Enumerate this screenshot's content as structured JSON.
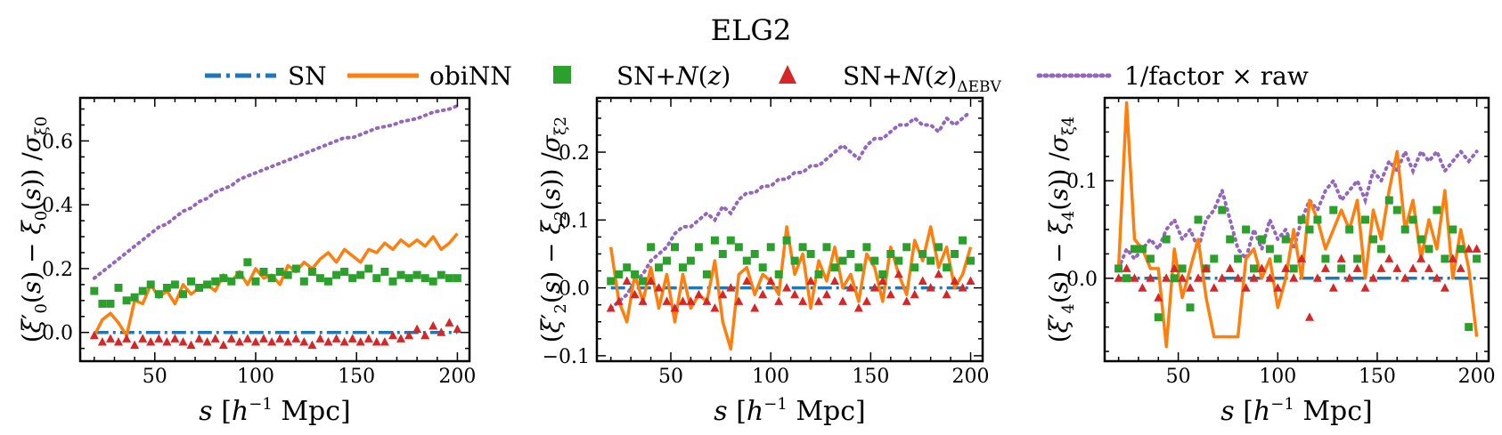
{
  "figure_title": "ELG2",
  "legend": [
    {
      "key": "sn",
      "label": "SN",
      "color": "#1f77b4",
      "style": "dashdot"
    },
    {
      "key": "obinn",
      "label": "obiNN",
      "color": "#ff7f0e",
      "style": "solid"
    },
    {
      "key": "snnz",
      "label": "SN+N(z)",
      "color": "#2ca02c",
      "style": "square"
    },
    {
      "key": "snnzebv",
      "label": "SN+N(z)ΔEBV",
      "color": "#d62728",
      "style": "triangle"
    },
    {
      "key": "raw",
      "label": "1/factor × raw",
      "color": "#9467bd",
      "style": "dotted"
    }
  ],
  "chart_data": [
    {
      "type": "line",
      "id": "xi0",
      "title": "",
      "xlabel": "s [h⁻¹ Mpc]",
      "ylabel": "(ξ′0(s) − ξ0(s)) /σξ0",
      "xlim": [
        13,
        206
      ],
      "ylim": [
        -0.09,
        0.735
      ],
      "xticks": [
        50,
        100,
        150,
        200
      ],
      "yticks": [
        0.0,
        0.2,
        0.4,
        0.6
      ],
      "ytick_labels": [
        "0.0",
        "0.2",
        "0.4",
        "0.6"
      ],
      "x": [
        20,
        24,
        28,
        32,
        36,
        40,
        44,
        48,
        52,
        56,
        60,
        64,
        68,
        72,
        76,
        80,
        84,
        88,
        92,
        96,
        100,
        104,
        108,
        112,
        116,
        120,
        124,
        128,
        132,
        136,
        140,
        144,
        148,
        152,
        156,
        160,
        164,
        168,
        172,
        176,
        180,
        184,
        188,
        192,
        196,
        200
      ],
      "series": [
        {
          "name": "SN",
          "values": [
            0,
            0,
            0,
            0,
            0,
            0,
            0,
            0,
            0,
            0,
            0,
            0,
            0,
            0,
            0,
            0,
            0,
            0,
            0,
            0,
            0,
            0,
            0,
            0,
            0,
            0,
            0,
            0,
            0,
            0,
            0,
            0,
            0,
            0,
            0,
            0,
            0,
            0,
            0,
            0,
            0,
            0,
            0,
            0,
            0,
            0
          ]
        },
        {
          "name": "obiNN",
          "values": [
            -0.01,
            0.04,
            0.06,
            0.03,
            -0.01,
            0.1,
            0.09,
            0.15,
            0.11,
            0.13,
            0.09,
            0.15,
            0.12,
            0.14,
            0.15,
            0.13,
            0.18,
            0.16,
            0.19,
            0.15,
            0.2,
            0.17,
            0.18,
            0.15,
            0.21,
            0.19,
            0.22,
            0.2,
            0.23,
            0.25,
            0.22,
            0.26,
            0.24,
            0.22,
            0.26,
            0.25,
            0.28,
            0.26,
            0.29,
            0.27,
            0.29,
            0.27,
            0.3,
            0.26,
            0.28,
            0.31
          ]
        },
        {
          "name": "SN+N(z)",
          "values": [
            0.13,
            0.09,
            0.09,
            0.14,
            0.1,
            0.11,
            0.13,
            0.15,
            0.12,
            0.14,
            0.15,
            0.12,
            0.16,
            0.14,
            0.15,
            0.16,
            0.17,
            0.16,
            0.18,
            0.22,
            0.16,
            0.19,
            0.17,
            0.19,
            0.18,
            0.2,
            0.16,
            0.19,
            0.17,
            0.16,
            0.18,
            0.19,
            0.17,
            0.18,
            0.2,
            0.17,
            0.19,
            0.16,
            0.18,
            0.17,
            0.18,
            0.17,
            0.16,
            0.18,
            0.17,
            0.17
          ]
        },
        {
          "name": "SN+N(z)ΔEBV",
          "values": [
            -0.01,
            -0.03,
            -0.02,
            -0.03,
            -0.02,
            -0.04,
            -0.02,
            -0.03,
            -0.02,
            -0.03,
            -0.02,
            -0.03,
            -0.04,
            -0.02,
            -0.03,
            -0.02,
            -0.04,
            -0.02,
            -0.03,
            -0.02,
            -0.03,
            -0.02,
            -0.03,
            -0.02,
            -0.03,
            -0.02,
            -0.03,
            -0.04,
            -0.02,
            -0.03,
            -0.02,
            -0.03,
            -0.02,
            -0.03,
            -0.02,
            -0.03,
            -0.03,
            -0.01,
            -0.02,
            -0.01,
            0.01,
            -0.01,
            0.02,
            0.0,
            0.03,
            0.01
          ]
        },
        {
          "name": "1/factor × raw",
          "values": [
            0.17,
            0.19,
            0.21,
            0.23,
            0.25,
            0.27,
            0.29,
            0.31,
            0.33,
            0.34,
            0.36,
            0.38,
            0.39,
            0.41,
            0.42,
            0.44,
            0.45,
            0.46,
            0.48,
            0.49,
            0.5,
            0.51,
            0.52,
            0.53,
            0.54,
            0.55,
            0.56,
            0.57,
            0.58,
            0.59,
            0.6,
            0.61,
            0.61,
            0.62,
            0.63,
            0.64,
            0.645,
            0.65,
            0.66,
            0.665,
            0.67,
            0.68,
            0.69,
            0.695,
            0.7,
            0.71
          ]
        }
      ]
    },
    {
      "type": "line",
      "id": "xi2",
      "title": "",
      "xlabel": "s [h⁻¹ Mpc]",
      "ylabel": "(ξ′2(s) − ξ2(s)) /σξ2",
      "xlim": [
        13,
        206
      ],
      "ylim": [
        -0.108,
        0.28
      ],
      "xticks": [
        50,
        100,
        150,
        200
      ],
      "yticks": [
        -0.1,
        0.0,
        0.1,
        0.2
      ],
      "ytick_labels": [
        "−0.1",
        "0.0",
        "0.1",
        "0.2"
      ],
      "x": [
        20,
        24,
        28,
        32,
        36,
        40,
        44,
        48,
        52,
        56,
        60,
        64,
        68,
        72,
        76,
        80,
        84,
        88,
        92,
        96,
        100,
        104,
        108,
        112,
        116,
        120,
        124,
        128,
        132,
        136,
        140,
        144,
        148,
        152,
        156,
        160,
        164,
        168,
        172,
        176,
        180,
        184,
        188,
        192,
        196,
        200
      ],
      "series": [
        {
          "name": "SN",
          "values": [
            0,
            0,
            0,
            0,
            0,
            0,
            0,
            0,
            0,
            0,
            0,
            0,
            0,
            0,
            0,
            0,
            0,
            0,
            0,
            0,
            0,
            0,
            0,
            0,
            0,
            0,
            0,
            0,
            0,
            0,
            0,
            0,
            0,
            0,
            0,
            0,
            0,
            0,
            0,
            0,
            0,
            0,
            0,
            0,
            0,
            0
          ]
        },
        {
          "name": "obiNN",
          "values": [
            0.06,
            -0.02,
            -0.05,
            0.02,
            -0.02,
            0.03,
            -0.03,
            0.02,
            -0.05,
            0.02,
            -0.03,
            -0.01,
            -0.02,
            0.04,
            -0.05,
            -0.09,
            0.02,
            0.03,
            -0.01,
            0.02,
            0.01,
            -0.01,
            0.09,
            0.02,
            0.05,
            -0.03,
            0.04,
            0.01,
            0.06,
            0.0,
            0.02,
            -0.02,
            0.05,
            0.03,
            -0.02,
            0.06,
            0.02,
            -0.01,
            0.07,
            0.04,
            0.09,
            0.03,
            0.06,
            0.0,
            0.02,
            0.06
          ]
        },
        {
          "name": "SN+N(z)",
          "values": [
            0.01,
            0.02,
            0.03,
            0.02,
            0.01,
            0.06,
            0.03,
            0.04,
            0.06,
            0.03,
            0.04,
            0.06,
            0.02,
            0.07,
            0.05,
            0.07,
            0.06,
            0.04,
            0.05,
            0.03,
            0.06,
            0.02,
            0.07,
            0.04,
            0.06,
            0.05,
            0.02,
            0.06,
            0.03,
            0.04,
            0.05,
            0.03,
            0.06,
            0.04,
            0.02,
            0.05,
            0.04,
            0.06,
            0.03,
            0.05,
            0.04,
            0.06,
            0.03,
            0.05,
            0.07,
            0.04
          ]
        },
        {
          "name": "SN+N(z)ΔEBV",
          "values": [
            -0.03,
            -0.02,
            0.01,
            -0.01,
            -0.02,
            0.01,
            0.0,
            -0.02,
            -0.03,
            -0.02,
            -0.02,
            -0.01,
            -0.02,
            -0.03,
            -0.01,
            0.0,
            -0.02,
            0.01,
            -0.03,
            -0.01,
            0.01,
            -0.02,
            0.0,
            -0.01,
            -0.02,
            0.01,
            -0.02,
            -0.01,
            0.01,
            -0.02,
            0.0,
            -0.03,
            -0.02,
            0.0,
            0.01,
            -0.01,
            0.02,
            -0.02,
            -0.01,
            0.01,
            0.0,
            0.02,
            -0.01,
            0.01,
            0.0,
            0.01
          ]
        },
        {
          "name": "1/factor × raw",
          "values": [
            -0.03,
            -0.02,
            -0.01,
            0.01,
            0.02,
            0.04,
            0.05,
            0.06,
            0.08,
            0.09,
            0.09,
            0.1,
            0.11,
            0.1,
            0.12,
            0.11,
            0.13,
            0.14,
            0.14,
            0.15,
            0.15,
            0.16,
            0.16,
            0.17,
            0.17,
            0.18,
            0.18,
            0.19,
            0.2,
            0.21,
            0.2,
            0.19,
            0.21,
            0.22,
            0.22,
            0.23,
            0.24,
            0.24,
            0.25,
            0.24,
            0.24,
            0.23,
            0.25,
            0.24,
            0.25,
            0.26
          ]
        }
      ]
    },
    {
      "type": "line",
      "id": "xi4",
      "title": "",
      "xlabel": "s [h⁻¹ Mpc]",
      "ylabel": "(ξ′4(s) − ξ4(s)) /σξ4",
      "xlim": [
        13,
        206
      ],
      "ylim": [
        -0.085,
        0.185
      ],
      "xticks": [
        50,
        100,
        150,
        200
      ],
      "yticks": [
        0.0,
        0.1
      ],
      "ytick_labels": [
        "0.0",
        "0.1"
      ],
      "x": [
        20,
        24,
        28,
        32,
        36,
        40,
        44,
        48,
        52,
        56,
        60,
        64,
        68,
        72,
        76,
        80,
        84,
        88,
        92,
        96,
        100,
        104,
        108,
        112,
        116,
        120,
        124,
        128,
        132,
        136,
        140,
        144,
        148,
        152,
        156,
        160,
        164,
        168,
        172,
        176,
        180,
        184,
        188,
        192,
        196,
        200
      ],
      "series": [
        {
          "name": "SN",
          "values": [
            0,
            0,
            0,
            0,
            0,
            0,
            0,
            0,
            0,
            0,
            0,
            0,
            0,
            0,
            0,
            0,
            0,
            0,
            0,
            0,
            0,
            0,
            0,
            0,
            0,
            0,
            0,
            0,
            0,
            0,
            0,
            0,
            0,
            0,
            0,
            0,
            0,
            0,
            0,
            0,
            0,
            0,
            0,
            0,
            0,
            0
          ]
        },
        {
          "name": "obiNN",
          "values": [
            0.01,
            0.18,
            0.04,
            0.03,
            0.01,
            0.01,
            -0.07,
            0.03,
            -0.02,
            0.01,
            0.04,
            -0.02,
            -0.06,
            -0.06,
            -0.06,
            -0.06,
            0.02,
            0.03,
            0.0,
            0.02,
            -0.03,
            0.0,
            0.05,
            0.0,
            0.08,
            0.06,
            0.03,
            0.05,
            0.07,
            0.05,
            0.08,
            0.0,
            0.07,
            0.04,
            0.09,
            0.13,
            0.05,
            0.08,
            0.02,
            0.06,
            0.03,
            0.09,
            0.0,
            0.05,
            0.01,
            -0.06
          ]
        },
        {
          "name": "SN+N(z)",
          "values": [
            0.01,
            0.0,
            0.03,
            0.03,
            0.02,
            -0.04,
            0.04,
            0.0,
            0.01,
            -0.03,
            0.06,
            0.01,
            0.02,
            0.07,
            0.04,
            0.02,
            0.05,
            0.01,
            0.04,
            0.03,
            0.02,
            0.04,
            0.01,
            0.06,
            0.05,
            0.06,
            0.02,
            0.07,
            0.01,
            0.05,
            0.02,
            0.06,
            0.04,
            0.03,
            0.08,
            0.07,
            0.05,
            0.06,
            0.04,
            0.03,
            0.07,
            0.02,
            0.05,
            0.03,
            -0.05,
            0.02
          ]
        },
        {
          "name": "SN+N(z)ΔEBV",
          "values": [
            0.0,
            0.01,
            0.0,
            -0.01,
            0.0,
            -0.02,
            0.0,
            0.01,
            0.0,
            -0.01,
            0.0,
            0.01,
            -0.01,
            0.0,
            0.01,
            0.0,
            -0.01,
            0.0,
            0.01,
            0.0,
            -0.01,
            0.01,
            0.0,
            0.02,
            -0.04,
            0.0,
            0.01,
            -0.01,
            0.02,
            0.0,
            0.01,
            -0.01,
            0.0,
            0.01,
            0.02,
            0.01,
            0.0,
            0.01,
            0.02,
            0.01,
            0.0,
            -0.01,
            0.02,
            0.01,
            0.03,
            0.03
          ]
        },
        {
          "name": "1/factor × raw",
          "values": [
            0.01,
            0.03,
            0.02,
            0.03,
            0.04,
            0.03,
            0.05,
            0.06,
            0.04,
            0.05,
            0.03,
            0.06,
            0.07,
            0.09,
            0.06,
            0.03,
            0.02,
            0.05,
            0.03,
            0.06,
            0.04,
            0.05,
            0.03,
            0.06,
            0.08,
            0.07,
            0.09,
            0.1,
            0.08,
            0.09,
            0.1,
            0.08,
            0.11,
            0.1,
            0.12,
            0.11,
            0.13,
            0.11,
            0.13,
            0.12,
            0.13,
            0.11,
            0.12,
            0.13,
            0.12,
            0.13
          ]
        }
      ]
    }
  ]
}
